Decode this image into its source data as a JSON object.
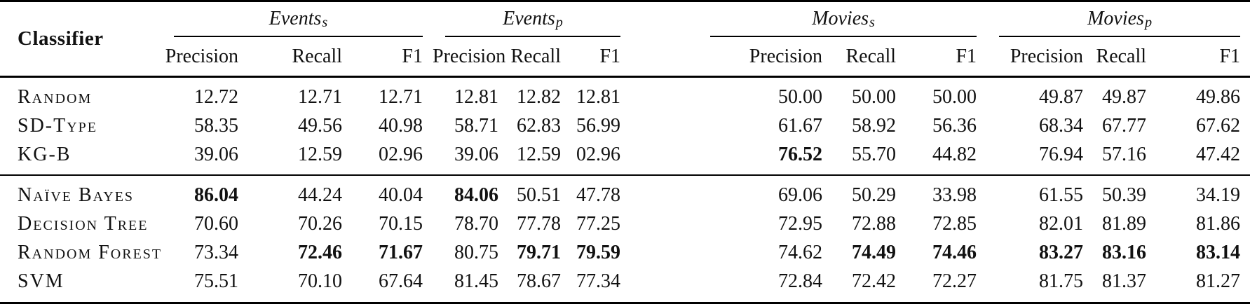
{
  "table": {
    "classifier_header": "Classifier",
    "groups": [
      {
        "name": "Events",
        "sub": "s"
      },
      {
        "name": "Events",
        "sub": "p"
      },
      {
        "name": "Movies",
        "sub": "s"
      },
      {
        "name": "Movies",
        "sub": "p"
      }
    ],
    "metric_headers": [
      "Precision",
      "Recall",
      "F1"
    ],
    "sections": [
      {
        "rows": [
          {
            "classifier": "Random",
            "values": [
              "12.72",
              "12.71",
              "12.71",
              "12.81",
              "12.82",
              "12.81",
              "50.00",
              "50.00",
              "50.00",
              "49.87",
              "49.87",
              "49.86"
            ],
            "bold": []
          },
          {
            "classifier": "SD-Type",
            "values": [
              "58.35",
              "49.56",
              "40.98",
              "58.71",
              "62.83",
              "56.99",
              "61.67",
              "58.92",
              "56.36",
              "68.34",
              "67.77",
              "67.62"
            ],
            "bold": []
          },
          {
            "classifier": "KG-B",
            "values": [
              "39.06",
              "12.59",
              "02.96",
              "39.06",
              "12.59",
              "02.96",
              "76.52",
              "55.70",
              "44.82",
              "76.94",
              "57.16",
              "47.42"
            ],
            "bold": [
              6
            ]
          }
        ]
      },
      {
        "rows": [
          {
            "classifier": "Naïve Bayes",
            "values": [
              "86.04",
              "44.24",
              "40.04",
              "84.06",
              "50.51",
              "47.78",
              "69.06",
              "50.29",
              "33.98",
              "61.55",
              "50.39",
              "34.19"
            ],
            "bold": [
              0,
              3
            ]
          },
          {
            "classifier": "Decision Tree",
            "values": [
              "70.60",
              "70.26",
              "70.15",
              "78.70",
              "77.78",
              "77.25",
              "72.95",
              "72.88",
              "72.85",
              "82.01",
              "81.89",
              "81.86"
            ],
            "bold": []
          },
          {
            "classifier": "Random Forest",
            "values": [
              "73.34",
              "72.46",
              "71.67",
              "80.75",
              "79.71",
              "79.59",
              "74.62",
              "74.49",
              "74.46",
              "83.27",
              "83.16",
              "83.14"
            ],
            "bold": [
              1,
              2,
              4,
              5,
              7,
              8,
              9,
              10,
              11
            ]
          },
          {
            "classifier": "SVM",
            "values": [
              "75.51",
              "70.10",
              "67.64",
              "81.45",
              "78.67",
              "77.34",
              "72.84",
              "72.42",
              "72.27",
              "81.75",
              "81.37",
              "81.27"
            ],
            "bold": []
          }
        ]
      }
    ]
  },
  "colors": {
    "text": "#111111",
    "rule": "#000000",
    "background": "#ffffff"
  }
}
